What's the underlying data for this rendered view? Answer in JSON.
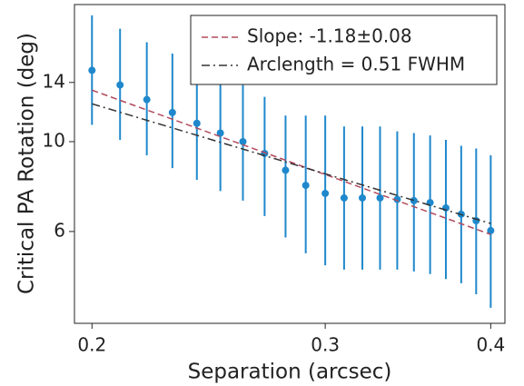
{
  "chart_data": {
    "type": "errorbar",
    "xlabel": "Separation (arcsec)",
    "ylabel": "Critical PA Rotation (deg)",
    "xscale": "log",
    "yscale": "log",
    "xlim": [
      0.194,
      0.41
    ],
    "ylim": [
      3.56,
      21.8
    ],
    "xticks": [
      0.2,
      0.3,
      0.4
    ],
    "yticks": [
      6,
      10,
      14
    ],
    "legend": "upper right",
    "series": [
      {
        "type": "errorbar",
        "color": "#1f88cc",
        "x": [
          0.2,
          0.21,
          0.22,
          0.23,
          0.24,
          0.25,
          0.26,
          0.27,
          0.28,
          0.29,
          0.3,
          0.31,
          0.32,
          0.33,
          0.34,
          0.35,
          0.36,
          0.37,
          0.38,
          0.39,
          0.4
        ],
        "values": [
          15.0,
          13.8,
          12.7,
          11.8,
          11.1,
          10.5,
          10.0,
          9.35,
          8.5,
          7.8,
          7.45,
          7.26,
          7.26,
          7.26,
          7.2,
          7.15,
          7.07,
          6.86,
          6.62,
          6.38,
          6.03
        ],
        "error_low": [
          4.0,
          3.7,
          3.45,
          3.2,
          3.05,
          2.95,
          2.85,
          2.8,
          2.7,
          2.5,
          2.5,
          2.43,
          2.43,
          2.43,
          2.37,
          2.37,
          2.36,
          2.28,
          2.15,
          2.18,
          2.14
        ],
        "error_high": [
          5.5,
          5.2,
          4.9,
          4.7,
          4.3,
          4.1,
          3.8,
          3.55,
          3.1,
          3.8,
          4.15,
          3.64,
          3.64,
          3.64,
          3.4,
          3.35,
          3.29,
          3.24,
          3.15,
          3.24,
          3.22
        ]
      },
      {
        "type": "line",
        "name": "Slope: -1.18±0.08",
        "color": "#b24a5c",
        "dash": "dashed",
        "x": [
          0.2,
          0.4
        ],
        "values": [
          13.4,
          5.9
        ]
      },
      {
        "type": "line",
        "name": "Arclength = 0.51 FWHM",
        "color": "#333333",
        "dash": "dashdot",
        "x": [
          0.2,
          0.4
        ],
        "values": [
          12.4,
          6.28
        ]
      }
    ]
  }
}
